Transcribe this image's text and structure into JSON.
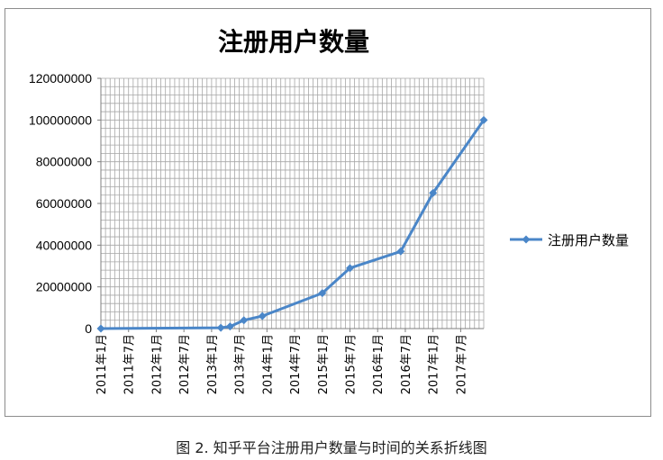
{
  "caption": "图 2.  知乎平台注册用户数量与时间的关系折线图",
  "colors": {
    "series": "#4a86c8",
    "grid": "#a6a6a6",
    "axis": "#7f7f7f",
    "text": "#000000"
  },
  "chart_data": {
    "type": "line",
    "title": "注册用户数量",
    "xlabel": "",
    "ylabel": "",
    "legend": "right",
    "grid": true,
    "ylim": [
      0,
      120000000
    ],
    "yticks": [
      "0",
      "20000000",
      "40000000",
      "60000000",
      "80000000",
      "100000000",
      "120000000"
    ],
    "xlim": [
      "2011-01",
      "2017-12"
    ],
    "xticks": [
      "2011年1月",
      "2011年7月",
      "2012年1月",
      "2012年7月",
      "2013年1月",
      "2013年7月",
      "2014年1月",
      "2014年7月",
      "2015年1月",
      "2015年7月",
      "2016年1月",
      "2016年7月",
      "2017年1月",
      "2017年7月"
    ],
    "series": [
      {
        "name": "注册用户数量",
        "marker": "diamond",
        "x": [
          "2011-01",
          "2013-03",
          "2013-05",
          "2013-08",
          "2013-12",
          "2015-01",
          "2015-07",
          "2016-06",
          "2017-01",
          "2017-12"
        ],
        "values": [
          0,
          400000,
          1000000,
          4000000,
          6000000,
          17000000,
          29000000,
          37000000,
          65000000,
          100000000
        ]
      }
    ]
  }
}
